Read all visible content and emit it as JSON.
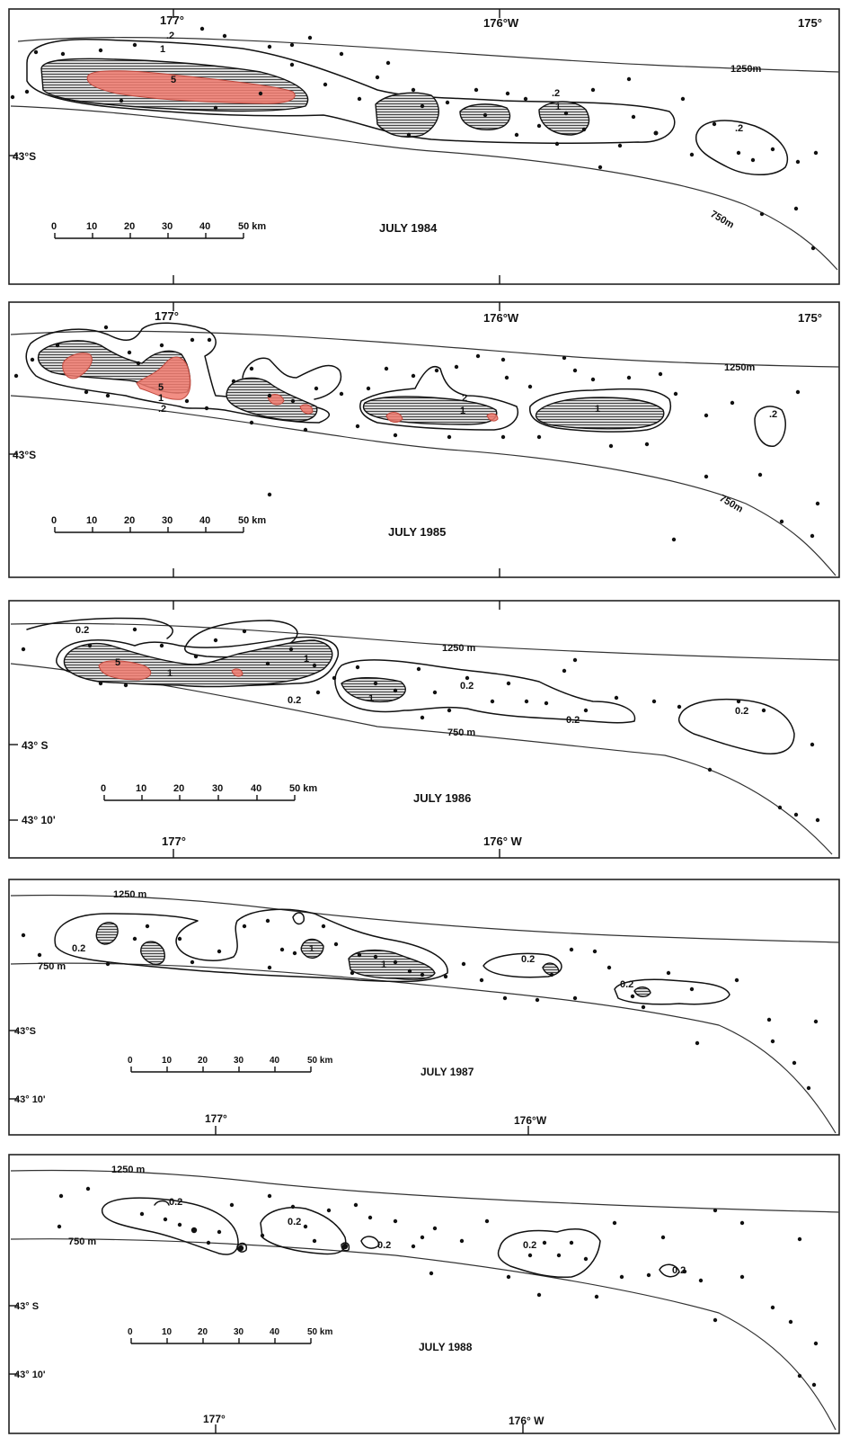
{
  "panels": [
    {
      "year_label": "JULY 1984",
      "lon_labels": [
        "177°",
        "176°W",
        "175°"
      ],
      "lat_labels": [
        "43°S"
      ],
      "depth_labels": [
        "1250m",
        "750m"
      ],
      "contour_labels": [
        ".2",
        "1",
        "5",
        ".2",
        "1",
        ".2"
      ],
      "scale": {
        "ticks": [
          "0",
          "10",
          "20",
          "30",
          "40",
          "50 km"
        ]
      }
    },
    {
      "year_label": "JULY 1985",
      "lon_labels": [
        "177°",
        "176°W",
        "175°"
      ],
      "lat_labels": [
        "43°S"
      ],
      "depth_labels": [
        "1250m",
        "750m"
      ],
      "contour_labels": [
        "5",
        "1",
        ".2",
        "2",
        "1",
        "1",
        ".2"
      ],
      "scale": {
        "ticks": [
          "0",
          "10",
          "20",
          "30",
          "40",
          "50 km"
        ]
      }
    },
    {
      "year_label": "JULY 1986",
      "lon_labels": [
        "177°",
        "176° W"
      ],
      "lat_labels": [
        "43° S",
        "43° 10'"
      ],
      "depth_labels": [
        "1250 m",
        "750 m"
      ],
      "contour_labels": [
        "0.2",
        "5",
        "1",
        "1",
        "0.2",
        "1",
        "0.2",
        "0.2",
        "0.2"
      ],
      "scale": {
        "ticks": [
          "0",
          "10",
          "20",
          "30",
          "40",
          "50 km"
        ]
      }
    },
    {
      "year_label": "JULY 1987",
      "lon_labels": [
        "177°",
        "176°W"
      ],
      "lat_labels": [
        "43°S",
        "43° 10'"
      ],
      "depth_labels": [
        "1250 m",
        "750 m"
      ],
      "contour_labels": [
        "0.2",
        "1",
        "1",
        "0.2",
        "0.2"
      ],
      "scale": {
        "ticks": [
          "0",
          "10",
          "20",
          "30",
          "40",
          "50 km"
        ]
      }
    },
    {
      "year_label": "JULY 1988",
      "lon_labels": [
        "177°",
        "176° W"
      ],
      "lat_labels": [
        "43° S",
        "43° 10'"
      ],
      "depth_labels": [
        "1250 m",
        "750 m"
      ],
      "contour_labels": [
        "0.2",
        "0.2",
        "0.2",
        "0.2",
        "0.2"
      ],
      "scale": {
        "ticks": [
          "0",
          "10",
          "20",
          "30",
          "40",
          "50 km"
        ]
      }
    }
  ],
  "colors": {
    "high_density_fill": "#f07a6e",
    "line": "#111111"
  }
}
